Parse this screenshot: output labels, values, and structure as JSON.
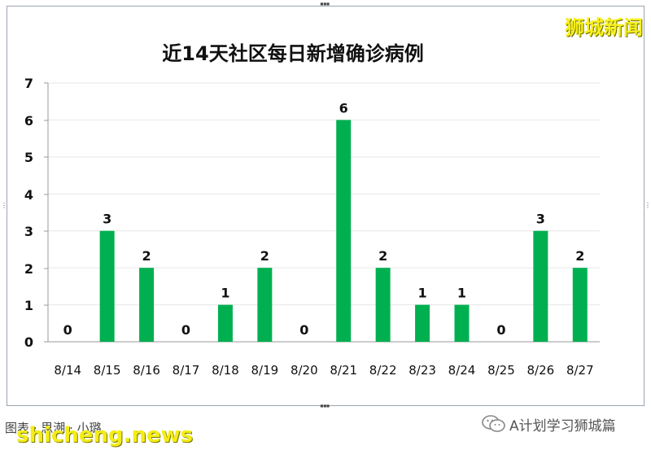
{
  "brand": "狮城新闻",
  "footer": {
    "caption": "图表 · 思潮 · 小璐",
    "watermark": "shicheng.news",
    "account": "A计划学习狮城篇"
  },
  "colors": {
    "bar": "#00b050",
    "brand": "#f7f01a"
  },
  "chart_data": {
    "type": "bar",
    "title": "近14天社区每日新增确诊病例",
    "xlabel": "",
    "ylabel": "",
    "ylim": [
      0,
      7
    ],
    "yticks": [
      "0",
      "1",
      "2",
      "2",
      "3",
      "4",
      "5",
      "6",
      "7"
    ],
    "grid": true,
    "legend": "none",
    "categories": [
      "8/14",
      "8/15",
      "8/16",
      "8/17",
      "8/18",
      "8/19",
      "8/20",
      "8/21",
      "8/22",
      "8/23",
      "8/24",
      "8/25",
      "8/26",
      "8/27"
    ],
    "values": [
      0,
      3,
      2,
      0,
      1,
      2,
      0,
      6,
      2,
      1,
      1,
      0,
      3,
      2
    ],
    "data_labels": [
      "0",
      "3",
      "2",
      "0",
      "1",
      "2",
      "0",
      "6",
      "2",
      "1",
      "1",
      "0",
      "3",
      "2"
    ]
  }
}
